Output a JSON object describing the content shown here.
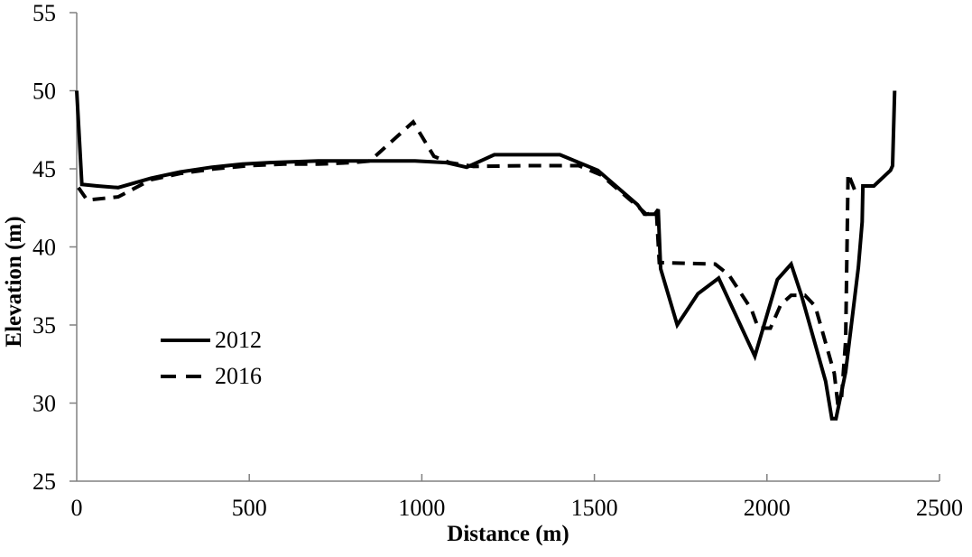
{
  "chart_data": {
    "type": "line",
    "title": "",
    "xlabel": "Distance (m)",
    "ylabel": "Elevation (m)",
    "xlim": [
      0,
      2500
    ],
    "ylim": [
      25,
      55
    ],
    "x_ticks": [
      0,
      500,
      1000,
      1500,
      2000,
      2500
    ],
    "y_ticks": [
      25,
      30,
      35,
      40,
      45,
      50,
      55
    ],
    "grid": false,
    "legend_position": "inside-left",
    "axis_color": "#808080",
    "line_color": "#000000",
    "series": [
      {
        "name": "2012",
        "style": "solid",
        "points": [
          [
            0,
            50
          ],
          [
            15,
            44
          ],
          [
            60,
            43.9
          ],
          [
            120,
            43.8
          ],
          [
            215,
            44.4
          ],
          [
            300,
            44.8
          ],
          [
            390,
            45.1
          ],
          [
            480,
            45.3
          ],
          [
            560,
            45.4
          ],
          [
            700,
            45.5
          ],
          [
            850,
            45.5
          ],
          [
            980,
            45.5
          ],
          [
            1070,
            45.4
          ],
          [
            1130,
            45.1
          ],
          [
            1210,
            45.9
          ],
          [
            1400,
            45.9
          ],
          [
            1510,
            44.9
          ],
          [
            1625,
            42.7
          ],
          [
            1645,
            42.1
          ],
          [
            1675,
            42.1
          ],
          [
            1685,
            42.4
          ],
          [
            1692,
            38.6
          ],
          [
            1740,
            35
          ],
          [
            1800,
            37
          ],
          [
            1860,
            38
          ],
          [
            1965,
            33
          ],
          [
            2030,
            37.9
          ],
          [
            2070,
            38.9
          ],
          [
            2100,
            36.9
          ],
          [
            2170,
            31.4
          ],
          [
            2188,
            29
          ],
          [
            2200,
            29
          ],
          [
            2228,
            32
          ],
          [
            2265,
            38.7
          ],
          [
            2276,
            41.6
          ],
          [
            2278,
            43.9
          ],
          [
            2310,
            43.9
          ],
          [
            2358,
            44.9
          ],
          [
            2364,
            45.2
          ],
          [
            2370,
            50
          ]
        ]
      },
      {
        "name": "2016",
        "style": "dashed",
        "points": [
          [
            5,
            43.8
          ],
          [
            30,
            43
          ],
          [
            120,
            43.2
          ],
          [
            215,
            44.3
          ],
          [
            300,
            44.7
          ],
          [
            400,
            45
          ],
          [
            500,
            45.2
          ],
          [
            600,
            45.3
          ],
          [
            700,
            45.3
          ],
          [
            800,
            45.4
          ],
          [
            850,
            45.5
          ],
          [
            975,
            48
          ],
          [
            1035,
            45.8
          ],
          [
            1080,
            45.4
          ],
          [
            1150,
            45.15
          ],
          [
            1300,
            45.2
          ],
          [
            1455,
            45.2
          ],
          [
            1520,
            44.6
          ],
          [
            1625,
            42.6
          ],
          [
            1650,
            42.1
          ],
          [
            1680,
            42.2
          ],
          [
            1688,
            39
          ],
          [
            1850,
            38.9
          ],
          [
            1890,
            38.2
          ],
          [
            1955,
            36
          ],
          [
            1975,
            34.8
          ],
          [
            2010,
            34.8
          ],
          [
            2040,
            36.3
          ],
          [
            2070,
            36.9
          ],
          [
            2110,
            36.9
          ],
          [
            2140,
            36.2
          ],
          [
            2195,
            31.9
          ],
          [
            2205,
            30
          ],
          [
            2215,
            30
          ],
          [
            2228,
            34
          ],
          [
            2235,
            44.7
          ],
          [
            2248,
            44
          ],
          [
            2262,
            43.2
          ]
        ]
      }
    ]
  }
}
